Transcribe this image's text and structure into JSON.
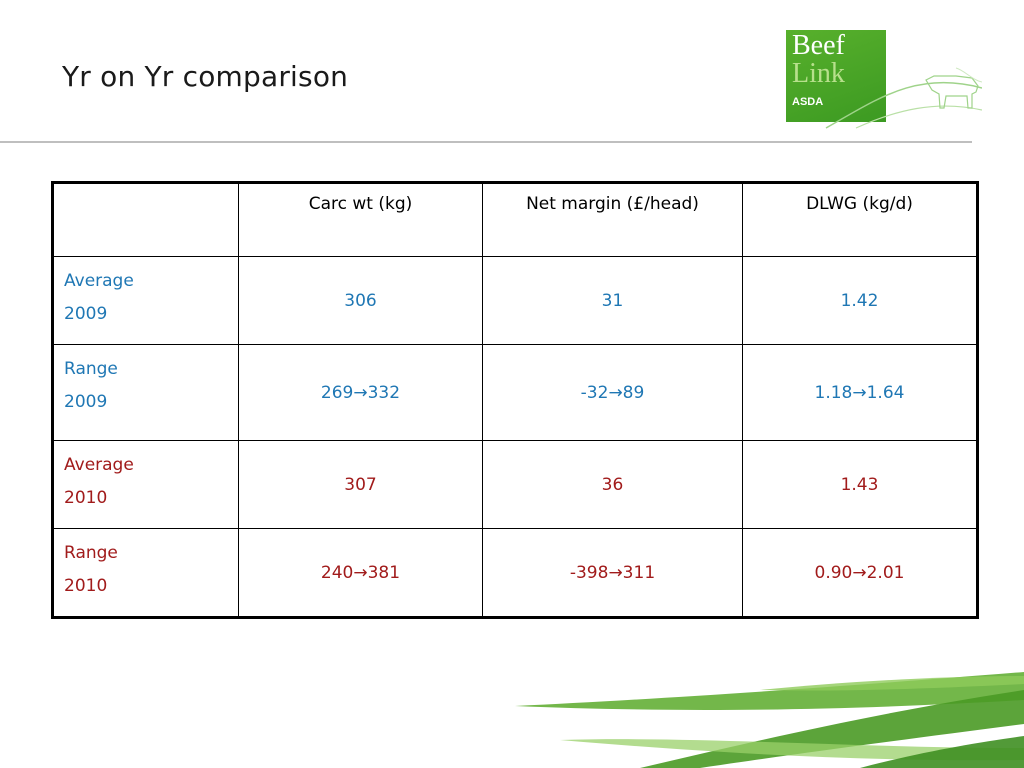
{
  "slide": {
    "title": "Yr on Yr comparison"
  },
  "logo": {
    "line1": "Beef",
    "line2": "Link",
    "sub": "ASDA"
  },
  "table": {
    "headers": [
      "",
      "Carc wt (kg)",
      "Net margin (£/head)",
      "DLWG (kg/d)"
    ],
    "rows": [
      {
        "label1": "Average",
        "label2": "2009",
        "carc": "306",
        "margin": "31",
        "dlwg": "1.42",
        "color": "#1f77b4"
      },
      {
        "label1": "Range",
        "label2": "2009",
        "carc": "269→332",
        "margin": "-32→89",
        "dlwg": "1.18→1.64",
        "color": "#1f77b4"
      },
      {
        "label1": "Average",
        "label2": "2010",
        "carc": "307",
        "margin": "36",
        "dlwg": "1.43",
        "color": "#a11b1b"
      },
      {
        "label1": "Range",
        "label2": "2010",
        "carc": "240→381",
        "margin": "-398→311",
        "dlwg": "0.90→2.01",
        "color": "#a11b1b"
      }
    ]
  },
  "colors": {
    "series_2009": "#1f77b4",
    "series_2010": "#a11b1b",
    "logo_green": "#4aa52a",
    "decor_green": "#5aaa2a"
  }
}
